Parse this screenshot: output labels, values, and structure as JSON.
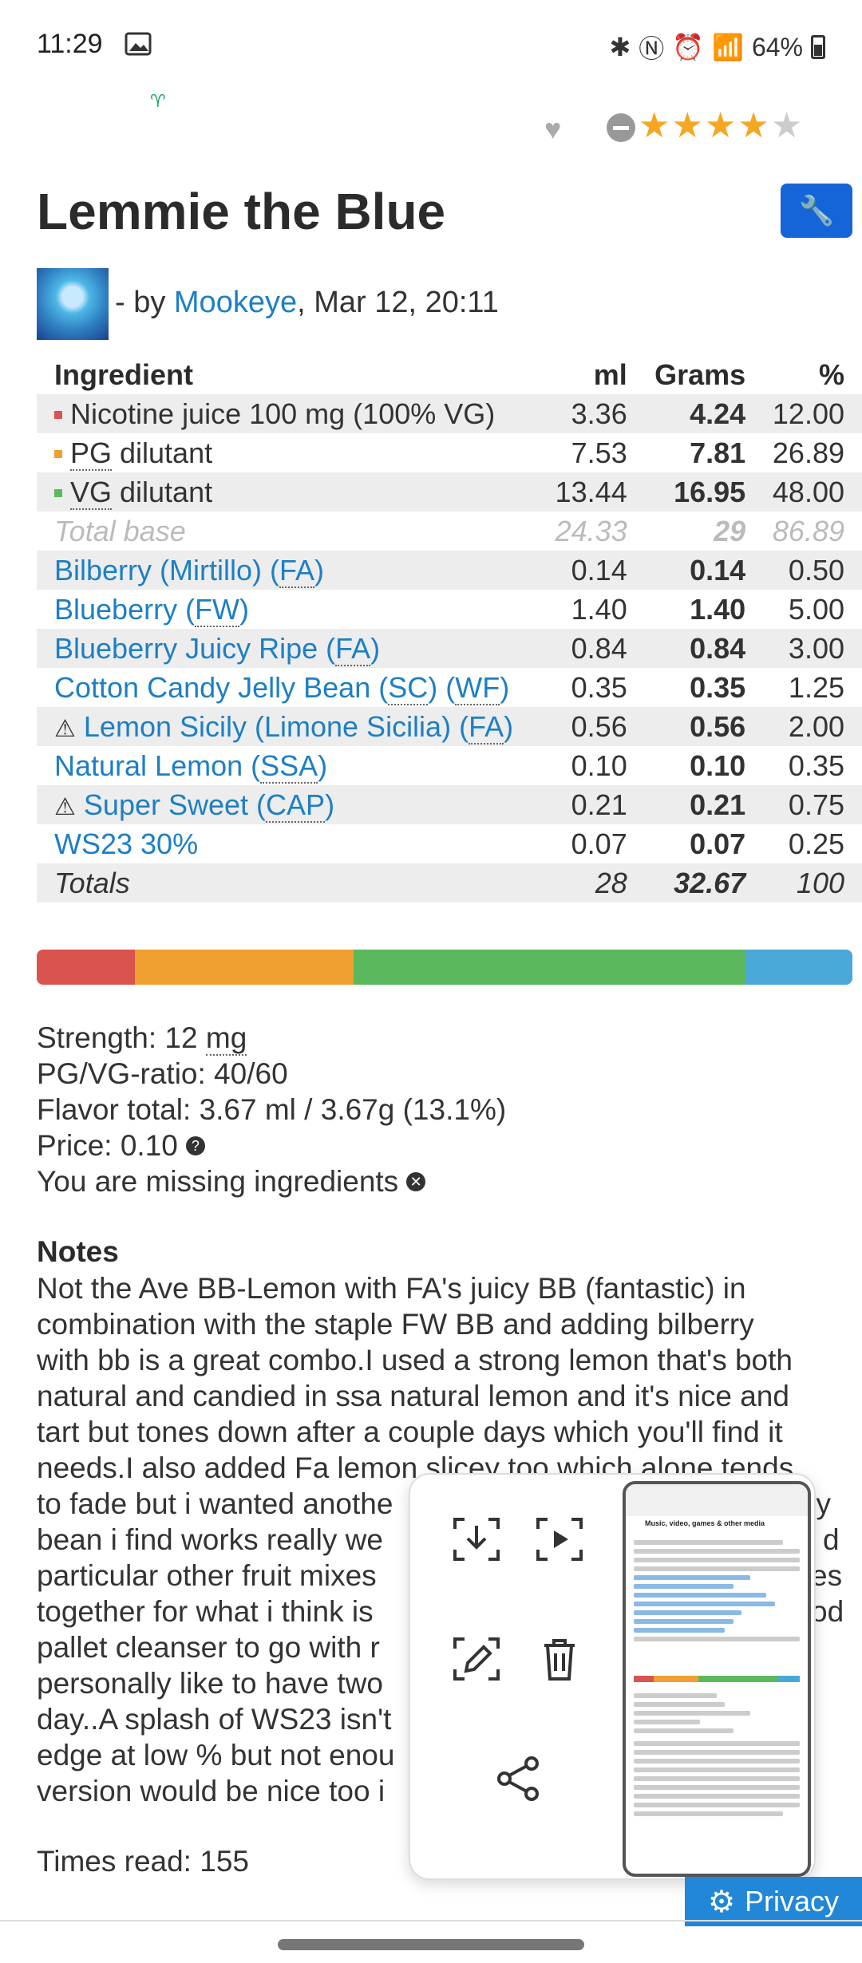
{
  "status_bar": {
    "time": "11:29",
    "battery": "64%"
  },
  "rating": {
    "stars_filled": 4,
    "stars_total": 5
  },
  "recipe": {
    "title": "Lemmie the Blue",
    "by_prefix": "- by ",
    "author": "Mookeye",
    "date": ", Mar 12, 20:11"
  },
  "table": {
    "headers": {
      "ingredient": "Ingredient",
      "ml": "ml",
      "grams": "Grams",
      "pct": "%"
    },
    "base_rows": [
      {
        "label": "Nicotine juice 100 mg (100% VG)",
        "color": "#d9534f",
        "ml": "3.36",
        "grams": "4.24",
        "pct": "12.00"
      },
      {
        "label_abbr": "PG",
        "label_rest": " dilutant",
        "color": "#f0a030",
        "ml": "7.53",
        "grams": "7.81",
        "pct": "26.89"
      },
      {
        "label_abbr": "VG",
        "label_rest": " dilutant",
        "color": "#5cb85c",
        "ml": "13.44",
        "grams": "16.95",
        "pct": "48.00"
      }
    ],
    "total_base": {
      "label": "Total base",
      "ml": "24.33",
      "grams": "29",
      "pct": "86.89"
    },
    "flavors": [
      {
        "name": "Bilberry (Mirtillo) (",
        "abbr": "FA",
        "end": ")",
        "ml": "0.14",
        "grams": "0.14",
        "pct": "0.50"
      },
      {
        "name": "Blueberry (",
        "abbr": "FW",
        "end": ")",
        "ml": "1.40",
        "grams": "1.40",
        "pct": "5.00"
      },
      {
        "name": "Blueberry Juicy Ripe (",
        "abbr": "FA",
        "end": ")",
        "ml": "0.84",
        "grams": "0.84",
        "pct": "3.00"
      },
      {
        "name": "Cotton Candy Jelly Bean (",
        "abbr": "SC",
        "mid": ") (",
        "abbr2": "WF",
        "end": ")",
        "ml": "0.35",
        "grams": "0.35",
        "pct": "1.25"
      },
      {
        "warn": true,
        "name": "Lemon Sicily (Limone Sicilia) (",
        "abbr": "FA",
        "end": ")",
        "ml": "0.56",
        "grams": "0.56",
        "pct": "2.00"
      },
      {
        "name": "Natural Lemon (",
        "abbr": "SSA",
        "end": ")",
        "ml": "0.10",
        "grams": "0.10",
        "pct": "0.35"
      },
      {
        "warn": true,
        "name": "Super Sweet (",
        "abbr": "CAP",
        "end": ")",
        "ml": "0.21",
        "grams": "0.21",
        "pct": "0.75"
      },
      {
        "name": "WS23 30%",
        "ml": "0.07",
        "grams": "0.07",
        "pct": "0.25"
      }
    ],
    "totals": {
      "label": "Totals",
      "ml": "28",
      "grams": "32.67",
      "pct": "100"
    }
  },
  "color_bar": [
    {
      "color": "#d9534f",
      "pct": 12.0
    },
    {
      "color": "#f0a030",
      "pct": 26.89
    },
    {
      "color": "#5cb85c",
      "pct": 48.0
    },
    {
      "color": "#4aa8d8",
      "pct": 13.11
    }
  ],
  "stats": {
    "strength_prefix": "Strength: 12 ",
    "strength_unit": "mg",
    "ratio": "PG/VG-ratio: 40/60",
    "flavor_total": "Flavor total: 3.67 ml / 3.67g (13.1%)",
    "price": "Price: 0.10",
    "missing": "You are missing ingredients"
  },
  "notes": {
    "heading": "Notes",
    "line1": "Not the Ave BB-Lemon with FA's juicy BB (fantastic) in",
    "line2": "combination with the staple FW BB and adding bilberry",
    "line3": "with bb is a great combo.I used a strong lemon that's both",
    "line4": "natural and candied in ssa natural lemon and it's nice and",
    "line5": "tart but tones down after a couple days which you'll find it",
    "line6": "needs.I also added Fa lemon slicey too which alone tends",
    "line7": "to fade but i wanted anothe",
    "line7b": "lly",
    "line8": "bean i find works really we",
    "line8b": "d",
    "line9": "particular other fruit mixes",
    "line9b": "es",
    "line10": "together for what i think is",
    "line10b": "od",
    "line11": "pallet cleanser to go with r",
    "line12": "personally like to have two",
    "line13": "day..A splash of WS23 isn't",
    "line14": "edge at low % but not enou",
    "line15": "version would be nice too i"
  },
  "times_read": "Times read: 155",
  "privacy_label": "Privacy",
  "screenshot_toolbar": {
    "thumb_title": "Music, video, games & other media"
  }
}
